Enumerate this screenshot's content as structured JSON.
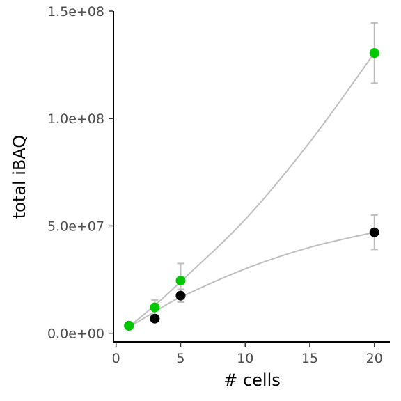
{
  "chart_data": {
    "type": "scatter",
    "title": "",
    "xlabel": "# cells",
    "ylabel": "total iBAQ",
    "xlim": [
      -0.2,
      21.2
    ],
    "ylim": [
      -4000000,
      150000000
    ],
    "x_ticks": [
      0,
      5,
      10,
      15,
      20
    ],
    "x_tick_labels": [
      "0",
      "5",
      "10",
      "15",
      "20"
    ],
    "y_ticks": [
      0,
      50000000,
      100000000,
      150000000
    ],
    "y_tick_labels": [
      "0.0e+00",
      "5.0e+07",
      "1.0e+08",
      "1.5e+08"
    ],
    "grid": false,
    "legend": "none",
    "fit_line_color": "#bebebe",
    "error_bar_color": "#bebebe",
    "series": [
      {
        "color": "#00c800",
        "points": [
          {
            "x": 1,
            "y": 3500000,
            "err": 0
          },
          {
            "x": 3,
            "y": 12000000,
            "err": 3500000
          },
          {
            "x": 5,
            "y": 24500000,
            "err": 8000000
          },
          {
            "x": 20,
            "y": 130500000,
            "err": 14000000
          }
        ],
        "fit": [
          {
            "x": 1,
            "y": 3000000
          },
          {
            "x": 3,
            "y": 13000000
          },
          {
            "x": 5,
            "y": 24000000
          },
          {
            "x": 10,
            "y": 53000000
          },
          {
            "x": 15,
            "y": 89000000
          },
          {
            "x": 20,
            "y": 130500000
          }
        ]
      },
      {
        "color": "#000000",
        "points": [
          {
            "x": 1,
            "y": 3500000,
            "err": 0
          },
          {
            "x": 3,
            "y": 6800000,
            "err": 1000000
          },
          {
            "x": 5,
            "y": 17500000,
            "err": 3000000
          },
          {
            "x": 20,
            "y": 47000000,
            "err": 8000000
          }
        ],
        "fit": [
          {
            "x": 1,
            "y": 2800000
          },
          {
            "x": 3,
            "y": 10000000
          },
          {
            "x": 5,
            "y": 16800000
          },
          {
            "x": 10,
            "y": 30000000
          },
          {
            "x": 15,
            "y": 40000000
          },
          {
            "x": 20,
            "y": 47000000
          }
        ]
      }
    ]
  }
}
